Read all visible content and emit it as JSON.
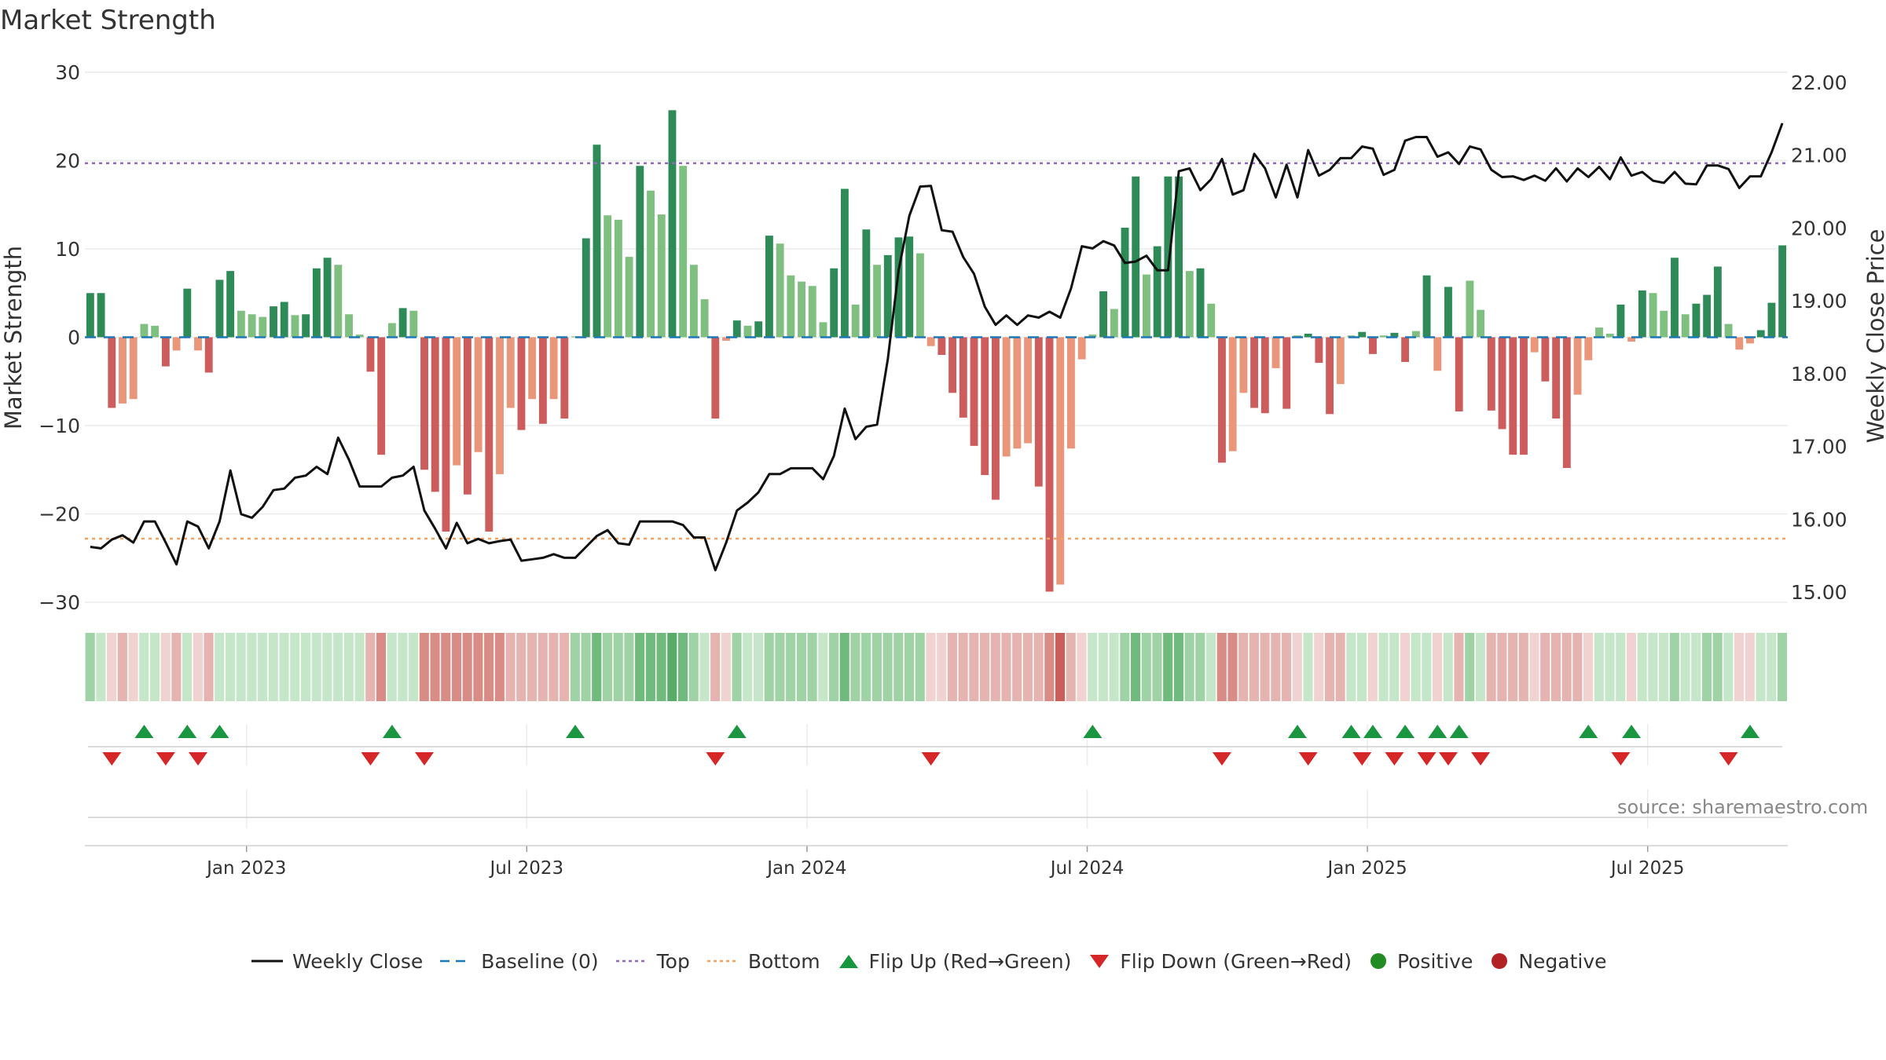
{
  "title": "Market Strength",
  "source_text": "source: sharemaestro.com",
  "colors": {
    "pos_strong": "#2e8b57",
    "pos_light": "#7fbf7f",
    "neg_strong": "#cd5c5c",
    "neg_light": "#e9967a",
    "close_line": "#111111",
    "baseline": "#1f77b4",
    "top": "#9467bd",
    "bottom": "#f4a261",
    "flip_up": "#1a9641",
    "flip_down": "#d62728",
    "positive": "#228b22",
    "negative": "#b22222"
  },
  "legend": [
    {
      "label": "Weekly Close",
      "kind": "line",
      "color": "#111111"
    },
    {
      "label": "Baseline (0)",
      "kind": "dash",
      "color": "#1f77b4"
    },
    {
      "label": "Top",
      "kind": "dot",
      "color": "#9467bd"
    },
    {
      "label": "Bottom",
      "kind": "dot",
      "color": "#f4a261"
    },
    {
      "label": "Flip Up (Red→Green)",
      "kind": "tri-up",
      "color": "#1a9641"
    },
    {
      "label": "Flip Down (Green→Red)",
      "kind": "tri-down",
      "color": "#d62728"
    },
    {
      "label": "Positive",
      "kind": "circle",
      "color": "#228b22"
    },
    {
      "label": "Negative",
      "kind": "circle",
      "color": "#b22222"
    }
  ],
  "chart_data": {
    "type": "bar",
    "title": "Market Strength",
    "ylabel": "Market Strength",
    "y2label": "Weekly Close Price",
    "ylim": [
      -30,
      30
    ],
    "y_ticks": [
      30,
      20,
      10,
      0,
      -10,
      -20,
      -30
    ],
    "y_tick_labels": [
      "30",
      "20",
      "10",
      "0",
      "−10",
      "−20",
      "−30"
    ],
    "y2lim": [
      15.0,
      22.0
    ],
    "y2_ticks": [
      22,
      21,
      20,
      19,
      18,
      17,
      16,
      15
    ],
    "y2_tick_labels": [
      "22.00",
      "21.00",
      "20.00",
      "19.00",
      "18.00",
      "17.00",
      "16.00",
      "15.00"
    ],
    "x_ticks": [
      15,
      41,
      67,
      93,
      119,
      145
    ],
    "x_tick_labels": [
      "Jan 2023",
      "Jul 2023",
      "Jan 2024",
      "Jul 2024",
      "Jan 2025",
      "Jul 2025"
    ],
    "top_line": 19.7,
    "bottom_line": -22.8,
    "baseline": 0,
    "strength": [
      5,
      5,
      -8,
      -7.5,
      -7,
      1.5,
      1.3,
      -3.3,
      -1.5,
      5.5,
      -1.5,
      -4,
      6.5,
      7.5,
      3,
      2.6,
      2.3,
      3.5,
      4,
      2.5,
      2.6,
      7.8,
      9,
      8.2,
      2.6,
      0.3,
      -3.9,
      -13.3,
      1.6,
      3.3,
      3,
      -15,
      -17.5,
      -22,
      -14.5,
      -17.8,
      -13,
      -22,
      -15.5,
      -8,
      -10.5,
      -7,
      -9.8,
      -7,
      -9.2,
      0.1,
      11.2,
      21.8,
      13.8,
      13.3,
      9.1,
      19.4,
      16.6,
      13.9,
      25.7,
      19.4,
      8.2,
      4.3,
      -9.2,
      -0.4,
      1.9,
      1.3,
      1.8,
      11.5,
      10.6,
      7,
      6.3,
      5.8,
      1.7,
      7.8,
      16.8,
      3.7,
      12.2,
      8.2,
      9.3,
      11.3,
      11.4,
      9.5,
      -1,
      -2,
      -6.3,
      -9.1,
      -12.3,
      -15.6,
      -18.4,
      -13.5,
      -12.6,
      -12,
      -16.9,
      -28.8,
      -28,
      -12.6,
      -2.5,
      0.3,
      5.2,
      3.2,
      12.4,
      18.2,
      7.1,
      10.3,
      18.2,
      18.2,
      7.5,
      7.8,
      3.8,
      -14.2,
      -12.9,
      -6.3,
      -8,
      -8.6,
      -3.5,
      -8.1,
      0.2,
      0.4,
      -2.9,
      -8.7,
      -5.3,
      0.2,
      0.6,
      -1.9,
      0.2,
      0.5,
      -2.8,
      0.7,
      7,
      -3.8,
      5.7,
      -8.4,
      6.4,
      3.1,
      -8.3,
      -10.4,
      -13.3,
      -13.3,
      -1.7,
      -5,
      -9.2,
      -14.8,
      -6.5,
      -2.6,
      1.1,
      0.4,
      3.7,
      -0.5,
      5.3,
      5,
      3,
      9,
      2.6,
      3.8,
      4.8,
      8,
      1.5,
      -1.4,
      -0.7,
      0.8,
      3.9,
      10.4
    ],
    "close": [
      15.62,
      15.6,
      15.72,
      15.78,
      15.68,
      15.97,
      15.97,
      15.68,
      15.38,
      15.97,
      15.9,
      15.6,
      15.97,
      16.67,
      16.07,
      16.02,
      16.17,
      16.4,
      16.42,
      16.57,
      16.6,
      16.72,
      16.62,
      17.12,
      16.82,
      16.45,
      16.45,
      16.45,
      16.57,
      16.6,
      16.72,
      16.12,
      15.87,
      15.6,
      15.95,
      15.67,
      15.73,
      15.67,
      15.7,
      15.72,
      15.43,
      15.45,
      15.47,
      15.52,
      15.47,
      15.47,
      15.62,
      15.77,
      15.85,
      15.67,
      15.65,
      15.97,
      15.97,
      15.97,
      15.97,
      15.92,
      15.75,
      15.75,
      15.3,
      15.68,
      16.12,
      16.23,
      16.37,
      16.62,
      16.62,
      16.7,
      16.7,
      16.7,
      16.55,
      16.87,
      17.52,
      17.1,
      17.27,
      17.3,
      18.2,
      19.42,
      20.17,
      20.57,
      20.58,
      19.97,
      19.95,
      19.6,
      19.37,
      18.92,
      18.67,
      18.8,
      18.67,
      18.8,
      18.77,
      18.85,
      18.77,
      19.17,
      19.75,
      19.72,
      19.82,
      19.76,
      19.52,
      19.54,
      19.62,
      19.42,
      19.42,
      20.78,
      20.82,
      20.52,
      20.67,
      20.95,
      20.46,
      20.52,
      21.02,
      20.82,
      20.42,
      20.87,
      20.42,
      21.07,
      20.72,
      20.8,
      20.96,
      20.96,
      21.12,
      21.09,
      20.73,
      20.8,
      21.2,
      21.25,
      21.25,
      20.98,
      21.04,
      20.88,
      21.12,
      21.08,
      20.8,
      20.7,
      20.71,
      20.66,
      20.72,
      20.65,
      20.82,
      20.64,
      20.82,
      20.7,
      20.84,
      20.67,
      20.97,
      20.72,
      20.77,
      20.65,
      20.62,
      20.77,
      20.61,
      20.6,
      20.86,
      20.86,
      20.81,
      20.55,
      20.71,
      20.71,
      21.04,
      21.44
    ],
    "regime_bands": [
      2,
      1,
      -1,
      -2,
      -1,
      1,
      1,
      -1,
      -2,
      1,
      -1,
      -2,
      1,
      1,
      1,
      1,
      1,
      1,
      1,
      1,
      1,
      1,
      1,
      1,
      1,
      1,
      -2,
      -3,
      1,
      1,
      1,
      -3,
      -3,
      -3,
      -3,
      -3,
      -3,
      -3,
      -3,
      -2,
      -2,
      -2,
      -2,
      -2,
      -2,
      2,
      2,
      3,
      2,
      2,
      2,
      3,
      3,
      3,
      4,
      3,
      2,
      1,
      -2,
      -1,
      2,
      1,
      1,
      2,
      2,
      2,
      2,
      2,
      1,
      2,
      3,
      2,
      2,
      2,
      2,
      2,
      2,
      2,
      -1,
      -1,
      -2,
      -2,
      -2,
      -2,
      -2,
      -2,
      -2,
      -2,
      -2,
      -3,
      -4,
      -2,
      -1,
      1,
      1,
      1,
      2,
      3,
      2,
      2,
      3,
      3,
      2,
      2,
      1,
      -3,
      -3,
      -2,
      -2,
      -2,
      -2,
      -2,
      -1,
      1,
      -1,
      -2,
      -2,
      1,
      1,
      -1,
      1,
      1,
      -1,
      1,
      1,
      -1,
      1,
      -2,
      2,
      1,
      -2,
      -2,
      -2,
      -2,
      -1,
      -2,
      -2,
      -2,
      -2,
      -1,
      1,
      1,
      1,
      -1,
      1,
      1,
      1,
      2,
      1,
      1,
      2,
      2,
      1,
      -1,
      -1,
      1,
      1,
      2
    ],
    "flip_up_idx": [
      5,
      9,
      12,
      28,
      45,
      60,
      93,
      112,
      117,
      119,
      122,
      125,
      127,
      139,
      143,
      154
    ],
    "flip_down_idx": [
      2,
      7,
      10,
      26,
      31,
      58,
      78,
      105,
      113,
      118,
      121,
      124,
      126,
      129,
      142,
      152
    ]
  }
}
